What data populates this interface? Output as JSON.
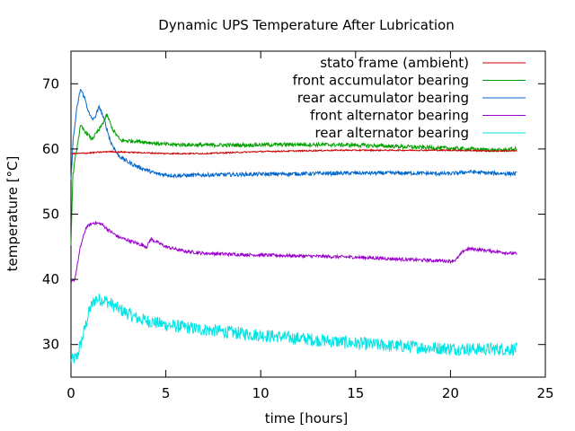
{
  "chart_data": {
    "type": "line",
    "title": "Dynamic UPS Temperature After Lubrication",
    "xlabel": "time [hours]",
    "ylabel": "temperature [°C]",
    "xlim": [
      0,
      25
    ],
    "ylim": [
      25,
      75
    ],
    "xticks": [
      0,
      5,
      10,
      15,
      20,
      25
    ],
    "yticks": [
      30,
      40,
      50,
      60,
      70
    ],
    "grid": false,
    "legend_position": "top-right",
    "series": [
      {
        "name": "stato frame (ambient)",
        "color": "#cc0000",
        "noise": 0.1,
        "x": [
          0,
          0.3,
          1,
          2,
          3,
          5,
          7,
          8,
          10,
          12,
          14,
          16,
          18,
          20,
          22,
          23.5
        ],
        "y": [
          59.3,
          59.3,
          59.4,
          59.6,
          59.5,
          59.3,
          59.3,
          59.4,
          59.6,
          59.7,
          59.8,
          59.8,
          59.8,
          59.8,
          59.7,
          59.7
        ]
      },
      {
        "name": "front accumulator bearing",
        "color": "#00a000",
        "noise": 0.3,
        "x": [
          0,
          0.1,
          0.3,
          0.5,
          0.8,
          1.1,
          1.5,
          1.9,
          2.2,
          2.6,
          3.5,
          5,
          7,
          9,
          12,
          15,
          18,
          21,
          22.5,
          23.5
        ],
        "y": [
          45.5,
          56,
          60,
          63.5,
          62.5,
          61.5,
          63,
          65.2,
          63,
          61.3,
          61.2,
          60.7,
          60.6,
          60.6,
          60.7,
          60.6,
          60.3,
          60,
          59.8,
          60
        ]
      },
      {
        "name": "rear accumulator bearing",
        "color": "#0066cc",
        "noise": 0.3,
        "x": [
          0,
          0.1,
          0.3,
          0.5,
          0.7,
          1.0,
          1.2,
          1.5,
          1.8,
          2.1,
          2.5,
          3,
          3.5,
          4.5,
          5.5,
          7,
          9,
          12,
          15,
          18,
          20,
          21,
          22,
          23.5
        ],
        "y": [
          55,
          61,
          66,
          69.2,
          68,
          65,
          64.5,
          66.5,
          64,
          61,
          59,
          58,
          57.3,
          56.2,
          55.9,
          56,
          56.1,
          56.2,
          56.3,
          56.3,
          56.2,
          56.5,
          56.3,
          56.2
        ]
      },
      {
        "name": "front alternator bearing",
        "color": "#9900cc",
        "noise": 0.25,
        "x": [
          0,
          0.2,
          0.5,
          0.8,
          1.2,
          1.6,
          2,
          2.5,
          3,
          3.5,
          4,
          4.2,
          5,
          6,
          7,
          9,
          12,
          15,
          18,
          20,
          20.3,
          20.7,
          21,
          22,
          23.5
        ],
        "y": [
          39.5,
          40,
          45,
          48,
          48.7,
          48.5,
          47.5,
          46.5,
          46,
          45.5,
          45,
          46.2,
          45,
          44.3,
          44,
          43.8,
          43.6,
          43.4,
          43,
          42.8,
          43,
          44.4,
          44.7,
          44.4,
          43.9
        ]
      },
      {
        "name": "rear alternator bearing",
        "color": "#00e5e5",
        "noise": 1.0,
        "x": [
          0,
          0.3,
          0.6,
          1.0,
          1.3,
          1.8,
          2.5,
          3.5,
          5,
          7,
          9,
          11,
          13,
          15,
          17,
          19,
          21,
          23.5
        ],
        "y": [
          27.5,
          28,
          31,
          35.5,
          37,
          36.8,
          35.5,
          34,
          33,
          32.3,
          31.7,
          31.2,
          30.7,
          30.2,
          29.8,
          29.5,
          29.3,
          29.3
        ]
      }
    ]
  }
}
